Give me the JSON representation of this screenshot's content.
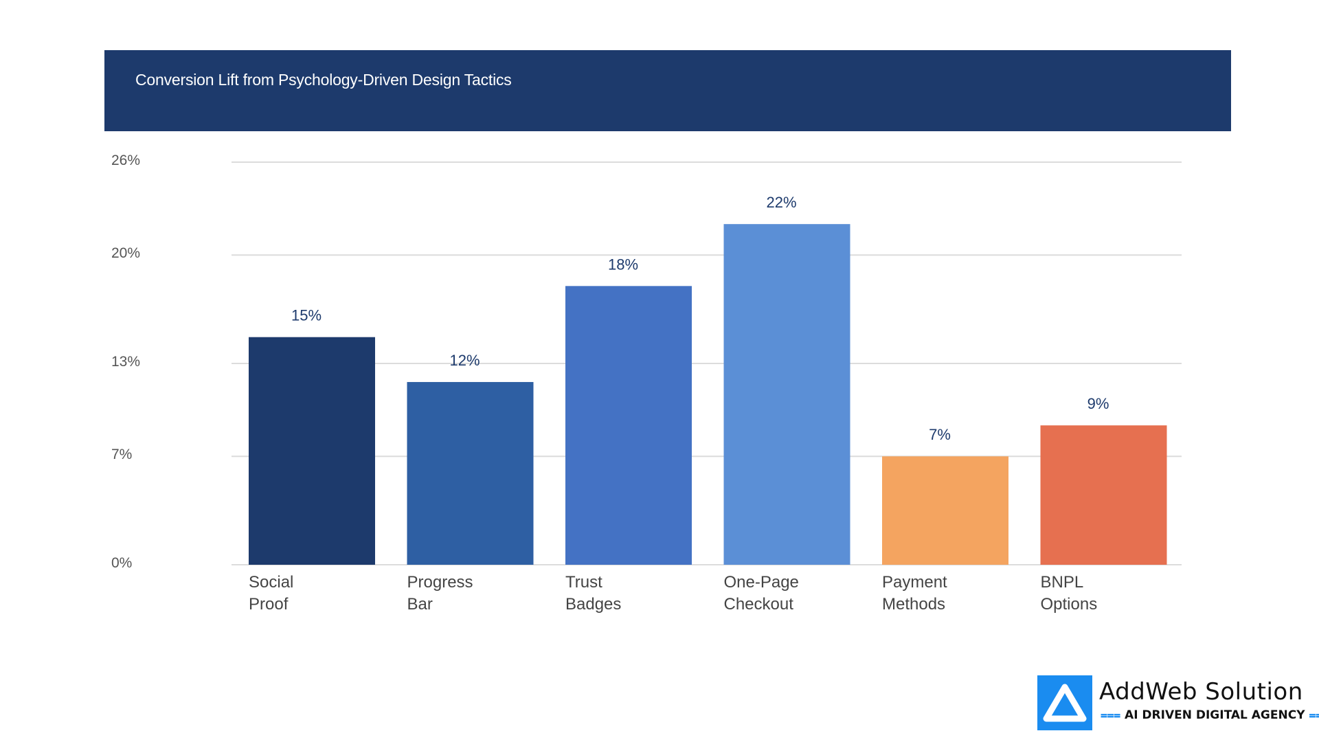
{
  "chart_data": {
    "type": "bar",
    "title": "Conversion Lift from Psychology-Driven Design Tactics",
    "categories": [
      [
        "Social",
        "Proof"
      ],
      [
        "Progress",
        "Bar"
      ],
      [
        "Trust",
        "Badges"
      ],
      [
        "One-Page",
        "Checkout"
      ],
      [
        "Payment",
        "Methods"
      ],
      [
        "BNPL",
        "Options"
      ]
    ],
    "values": [
      14.7,
      11.8,
      18.0,
      22.0,
      7.0,
      9.0
    ],
    "data_labels": [
      "15%",
      "12%",
      "18%",
      "22%",
      "7%",
      "9%"
    ],
    "bar_colors": [
      "#1d3a6c",
      "#2e5fa3",
      "#4472c4",
      "#5b8fd6",
      "#f4a460",
      "#e67050"
    ],
    "yticks": [
      0,
      7,
      13,
      20,
      26
    ],
    "ytick_labels": [
      "0%",
      "7%",
      "13%",
      "20%",
      "26%"
    ],
    "ylim": [
      0,
      26
    ],
    "grid": true,
    "xlabel": "",
    "ylabel": ""
  },
  "header": {
    "background": "#1d3a6c"
  },
  "brand": {
    "name": "AddWeb Solution",
    "tagline": "AI DRIVEN DIGITAL AGENCY",
    "logo_color": "#1a8cf0",
    "logo_icon": "triangle-a-logo-icon"
  }
}
